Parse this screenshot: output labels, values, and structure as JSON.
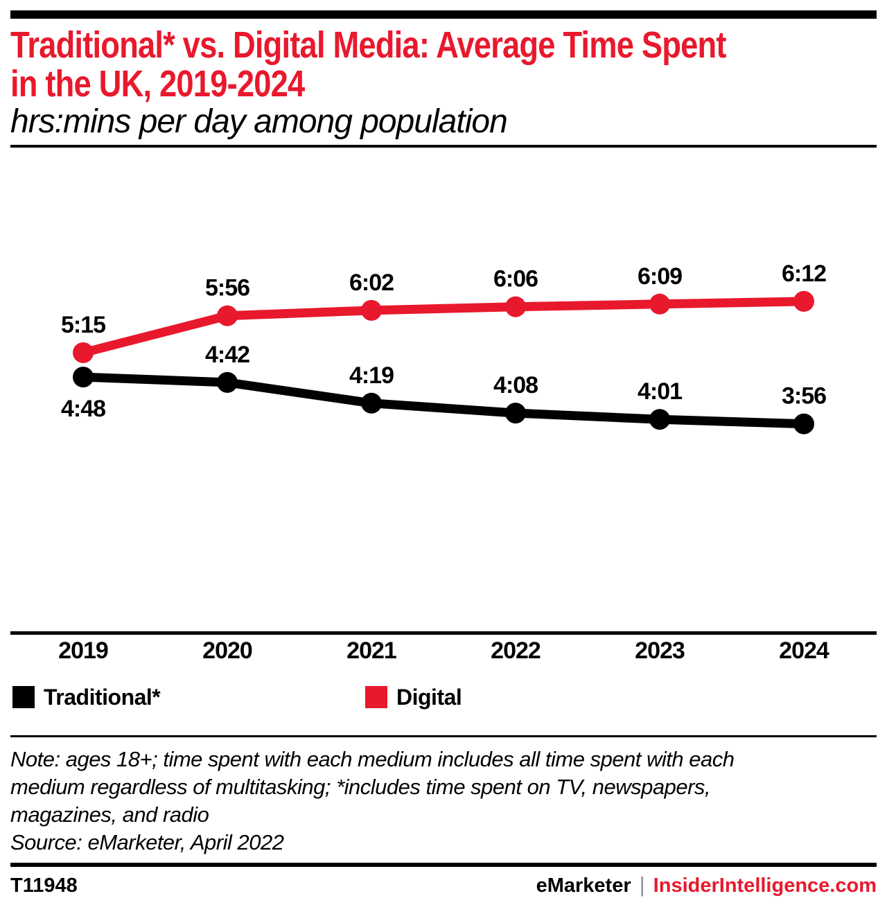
{
  "header": {
    "title_line1": "Traditional* vs. Digital Media: Average Time Spent",
    "title_line2": "in the UK, 2019-2024",
    "subtitle": "hrs:mins per day among population"
  },
  "colors": {
    "accent_red": "#e8192d",
    "black": "#000000",
    "separator_gray": "#8f8f9d"
  },
  "chart_data": {
    "type": "line",
    "title": "Traditional* vs. Digital Media: Average Time Spent in the UK, 2019-2024",
    "subtitle": "hrs:mins per day among population",
    "unit": "hrs:mins per day among population",
    "categories": [
      "2019",
      "2020",
      "2021",
      "2022",
      "2023",
      "2024"
    ],
    "series": [
      {
        "name": "Traditional*",
        "color": "#000000",
        "values": [
          "4:48",
          "4:42",
          "4:19",
          "4:08",
          "4:01",
          "3:56"
        ],
        "values_minutes": [
          288,
          282,
          259,
          248,
          241,
          236
        ],
        "label_positions": [
          "below",
          "above",
          "above",
          "above",
          "above",
          "above"
        ]
      },
      {
        "name": "Digital",
        "color": "#e8192d",
        "values": [
          "5:15",
          "5:56",
          "6:02",
          "6:06",
          "6:09",
          "6:12"
        ],
        "values_minutes": [
          315,
          356,
          362,
          366,
          369,
          372
        ],
        "label_positions": [
          "above",
          "above",
          "above",
          "above",
          "above",
          "above"
        ]
      }
    ],
    "ylim_minutes": [
      0,
      540
    ],
    "grid": false,
    "legend_position": "bottom"
  },
  "legend": {
    "items": [
      {
        "label": "Traditional*",
        "color": "#000000"
      },
      {
        "label": "Digital",
        "color": "#e8192d"
      }
    ]
  },
  "notes": {
    "note_lines": [
      "Note: ages 18+; time spent with each medium includes all time spent with each",
      "medium regardless of multitasking; *includes time spent on TV, newspapers,",
      "magazines, and radio"
    ],
    "source": "Source: eMarketer, April 2022"
  },
  "footer": {
    "chart_id": "T11948",
    "brand": "eMarketer",
    "separator": "|",
    "site": "InsiderIntelligence.com"
  }
}
